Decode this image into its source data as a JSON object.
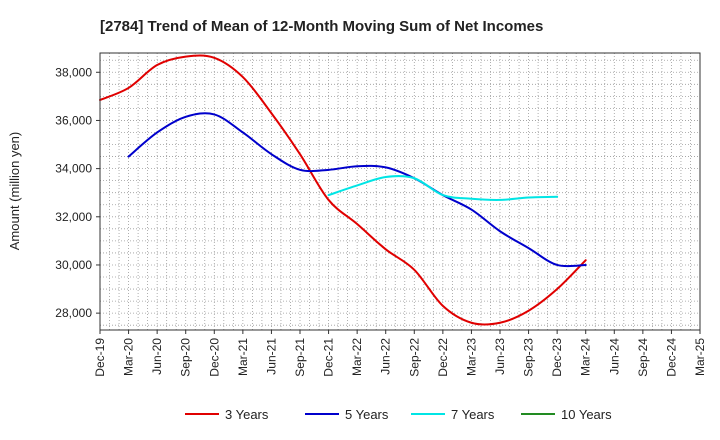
{
  "chart_data": {
    "type": "line",
    "title": "[2784]  Trend of Mean of 12-Month Moving Sum of Net Incomes",
    "xlabel": "",
    "ylabel": "Amount (million yen)",
    "ylim": [
      27300,
      38800
    ],
    "yticks": [
      28000,
      30000,
      32000,
      34000,
      36000,
      38000
    ],
    "ytick_labels": [
      "28,000",
      "30,000",
      "32,000",
      "34,000",
      "36,000",
      "38,000"
    ],
    "grid": true,
    "legend_position": "bottom",
    "x_labels": [
      "Dec-19",
      "Mar-20",
      "Jun-20",
      "Sep-20",
      "Dec-20",
      "Mar-21",
      "Jun-21",
      "Sep-21",
      "Dec-21",
      "Mar-22",
      "Jun-22",
      "Sep-22",
      "Dec-22",
      "Mar-23",
      "Jun-23",
      "Sep-23",
      "Dec-23",
      "Mar-24",
      "Jun-24",
      "Sep-24",
      "Dec-24",
      "Mar-25"
    ],
    "series": [
      {
        "name": "3 Years",
        "color": "#e00000",
        "values": [
          36850,
          37350,
          38300,
          38650,
          38600,
          37800,
          36300,
          34600,
          32700,
          31700,
          30650,
          29800,
          28300,
          27600,
          27600,
          28100,
          29000,
          30200,
          null,
          null,
          null,
          null
        ]
      },
      {
        "name": "5 Years",
        "color": "#0000cc",
        "values": [
          null,
          34500,
          35500,
          36150,
          36250,
          35500,
          34600,
          33950,
          33950,
          34100,
          34050,
          33600,
          32900,
          32300,
          31400,
          30700,
          30000,
          30000,
          null,
          null,
          null,
          null
        ]
      },
      {
        "name": "7 Years",
        "color": "#00e5e5",
        "values": [
          null,
          null,
          null,
          null,
          null,
          null,
          null,
          null,
          32900,
          33300,
          33650,
          33600,
          32900,
          32750,
          32700,
          32800,
          32830,
          null,
          null,
          null,
          null,
          null
        ]
      },
      {
        "name": "10 Years",
        "color": "#228b22",
        "values": [
          null,
          null,
          null,
          null,
          null,
          null,
          null,
          null,
          null,
          null,
          null,
          null,
          null,
          null,
          null,
          null,
          null,
          null,
          null,
          null,
          null,
          null
        ]
      }
    ]
  }
}
